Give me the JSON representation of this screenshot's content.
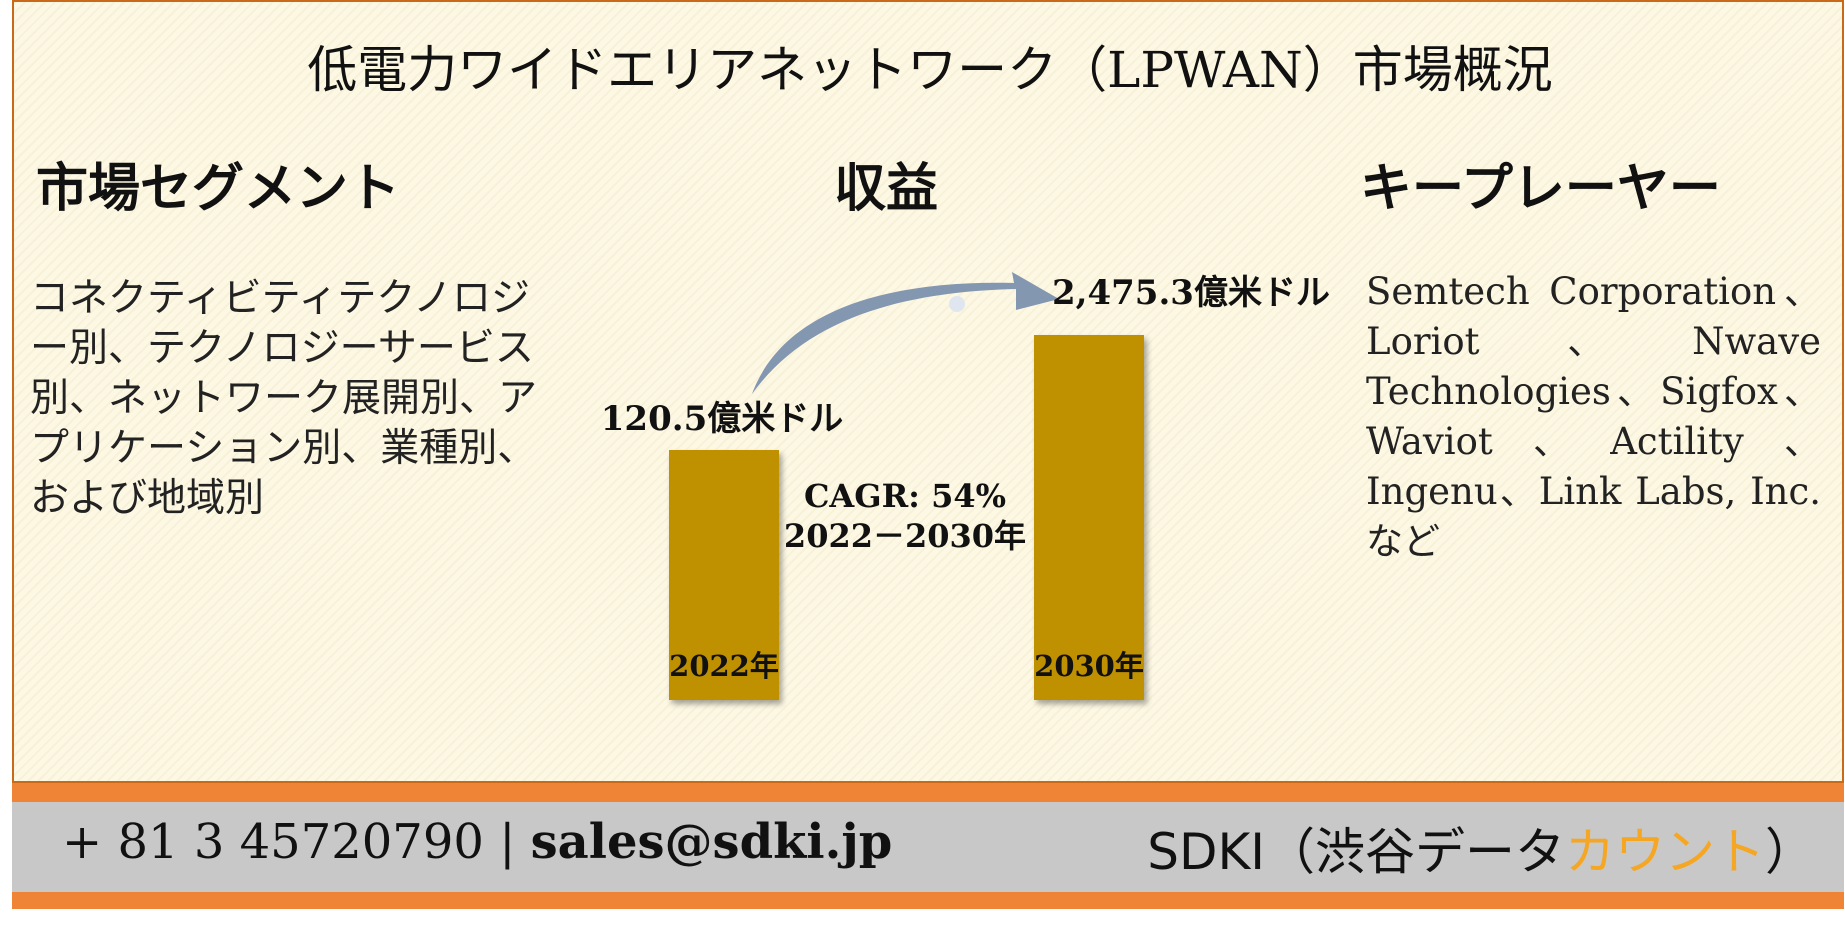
{
  "title": "低電力ワイドエリアネットワーク（LPWAN）市場概況",
  "sections": {
    "segments": {
      "heading": "市場セグメント",
      "text": "コネクティビティテクノロジー別、テクノロジーサービス別、ネットワーク展開別、アプリケーション別、業種別、および地域別"
    },
    "revenue": {
      "heading": "収益"
    },
    "players": {
      "heading": "キープレーヤー",
      "text": "Semtech Corporation、Loriot、Nwave Technologies、Sigfox、Waviot、Actility、Ingenu、Link Labs, Inc.など"
    }
  },
  "chart_data": {
    "type": "bar",
    "categories": [
      "2022年",
      "2030年"
    ],
    "values": [
      120.5,
      2475.3
    ],
    "value_labels": [
      "120.5億米ドル",
      "2,475.3億米ドル"
    ],
    "unit": "億米ドル",
    "cagr_line1": "CAGR: 54%",
    "cagr_line2": "2022－2030年",
    "bar_color": "#bf9000",
    "arrow_color": "#8497b0"
  },
  "footer": {
    "phone": "+ 81 3 45720790",
    "separator": "|",
    "email": "sales@sdki.jp",
    "brand_prefix": "SDKI（渋谷データ",
    "brand_accent": "カウント",
    "brand_suffix": "）",
    "accent_color": "#f5a623",
    "bar_color": "#f08436"
  }
}
